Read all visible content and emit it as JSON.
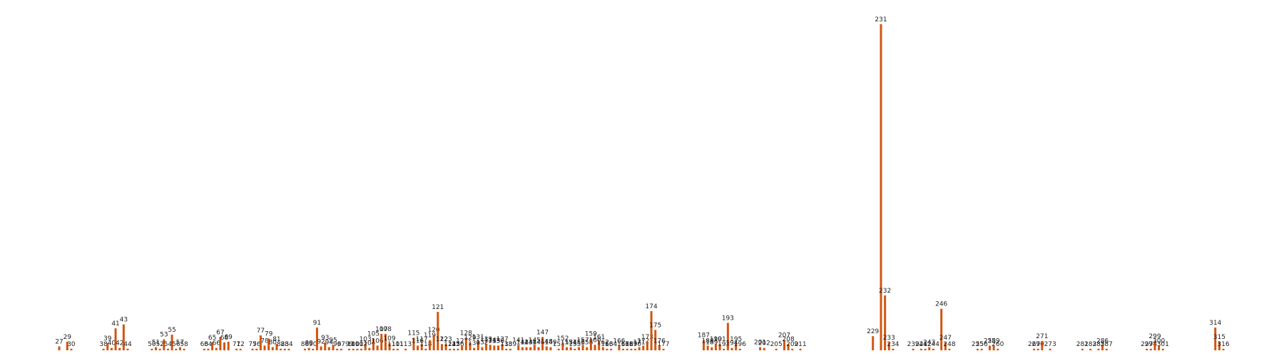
{
  "chart_data": {
    "type": "bar",
    "color": "#d2560f",
    "x": [
      27,
      29,
      30,
      38,
      39,
      40,
      41,
      42,
      43,
      44,
      50,
      51,
      52,
      53,
      54,
      55,
      56,
      57,
      58,
      63,
      64,
      65,
      66,
      67,
      68,
      69,
      71,
      72,
      75,
      76,
      77,
      78,
      79,
      80,
      81,
      82,
      83,
      84,
      88,
      89,
      90,
      91,
      92,
      93,
      94,
      95,
      96,
      97,
      99,
      100,
      101,
      102,
      103,
      104,
      105,
      106,
      107,
      108,
      109,
      110,
      111,
      113,
      115,
      116,
      117,
      118,
      119,
      120,
      121,
      122,
      123,
      124,
      125,
      126,
      127,
      128,
      129,
      130,
      131,
      132,
      133,
      134,
      135,
      136,
      137,
      138,
      139,
      141,
      142,
      143,
      144,
      145,
      146,
      147,
      148,
      149,
      151,
      152,
      153,
      154,
      155,
      156,
      157,
      158,
      159,
      160,
      161,
      162,
      163,
      164,
      166,
      167,
      168,
      169,
      170,
      171,
      172,
      173,
      174,
      175,
      176,
      177,
      187,
      188,
      189,
      190,
      191,
      192,
      193,
      194,
      195,
      196,
      201,
      202,
      205,
      207,
      208,
      209,
      211,
      229,
      231,
      232,
      233,
      234,
      239,
      241,
      242,
      243,
      244,
      246,
      247,
      248,
      255,
      256,
      258,
      259,
      260,
      269,
      270,
      271,
      273,
      281,
      283,
      285,
      286,
      287,
      297,
      298,
      299,
      300,
      301,
      314,
      315,
      316
    ],
    "values": [
      5,
      11,
      2,
      2,
      9,
      3,
      28,
      3,
      33,
      2,
      2,
      4,
      2,
      14,
      2,
      20,
      2,
      4,
      2,
      2,
      2,
      10,
      3,
      17,
      10,
      11,
      2,
      2,
      2,
      2,
      19,
      6,
      15,
      4,
      8,
      2,
      2,
      2,
      2,
      3,
      2,
      29,
      5,
      10,
      4,
      7,
      2,
      2,
      2,
      2,
      2,
      2,
      8,
      3,
      15,
      6,
      21,
      21,
      9,
      2,
      2,
      2,
      16,
      6,
      8,
      2,
      13,
      20,
      49,
      8,
      8,
      2,
      2,
      2,
      6,
      16,
      10,
      3,
      11,
      4,
      8,
      7,
      6,
      6,
      8,
      2,
      2,
      7,
      4,
      4,
      4,
      7,
      4,
      17,
      5,
      4,
      2,
      9,
      4,
      4,
      2,
      4,
      7,
      4,
      15,
      7,
      11,
      4,
      2,
      2,
      6,
      2,
      2,
      2,
      2,
      4,
      6,
      11,
      50,
      26,
      6,
      2,
      13,
      6,
      4,
      8,
      8,
      2,
      35,
      3,
      8,
      2,
      4,
      3,
      2,
      13,
      8,
      2,
      2,
      18,
      416,
      70,
      10,
      2,
      2,
      2,
      2,
      4,
      2,
      53,
      10,
      2,
      2,
      2,
      6,
      6,
      2,
      2,
      2,
      12,
      2,
      2,
      2,
      2,
      6,
      2,
      2,
      2,
      12,
      6,
      2,
      29,
      11,
      2
    ]
  }
}
